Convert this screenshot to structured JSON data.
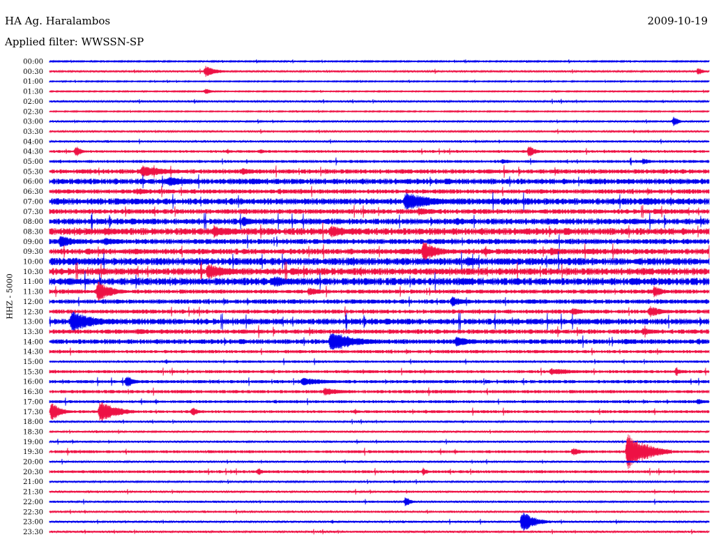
{
  "header": {
    "station": "HA Ag. Haralambos",
    "filter": "Applied filter: WWSSN-SP",
    "date": "2009-10-19"
  },
  "chart_data": {
    "type": "line",
    "title": "HA Ag. Haralambos",
    "subtitle": "Applied filter: WWSSN-SP",
    "date": "2009-10-19",
    "ylabel": "HHZ - 5000",
    "row_interval_minutes": 30,
    "colors": [
      "#0000ee",
      "#ee1144"
    ],
    "rows": [
      "00:00",
      "00:30",
      "01:00",
      "01:30",
      "02:00",
      "02:30",
      "03:00",
      "03:30",
      "04:00",
      "04:30",
      "05:00",
      "05:30",
      "06:00",
      "06:30",
      "07:00",
      "07:30",
      "08:00",
      "08:30",
      "09:00",
      "09:30",
      "10:00",
      "10:30",
      "11:00",
      "11:30",
      "12:00",
      "12:30",
      "13:00",
      "13:30",
      "14:00",
      "14:30",
      "15:00",
      "15:30",
      "16:00",
      "16:30",
      "17:00",
      "17:30",
      "18:00",
      "18:30",
      "19:00",
      "19:30",
      "20:00",
      "20:30",
      "21:00",
      "21:30",
      "22:00",
      "22:30",
      "23:00",
      "23:30"
    ],
    "noise": [
      0.7,
      0.9,
      0.6,
      0.6,
      1.0,
      0.6,
      0.8,
      0.9,
      1.1,
      1.3,
      1.4,
      2.2,
      2.8,
      2.2,
      3.2,
      2.4,
      3.0,
      3.4,
      2.6,
      2.8,
      3.6,
      3.4,
      3.6,
      2.0,
      2.2,
      2.0,
      3.0,
      2.2,
      2.4,
      1.6,
      1.2,
      1.5,
      1.6,
      1.6,
      1.4,
      1.4,
      1.0,
      0.8,
      1.0,
      1.4,
      1.0,
      1.4,
      0.9,
      1.0,
      1.0,
      1.0,
      1.0,
      1.0
    ],
    "events": [
      {
        "row": "00:30",
        "minute": 7.1,
        "amp": 8,
        "dur": 1.2
      },
      {
        "row": "00:30",
        "minute": 29.5,
        "amp": 6,
        "dur": 0.6
      },
      {
        "row": "01:30",
        "minute": 7.1,
        "amp": 5,
        "dur": 0.6
      },
      {
        "row": "03:00",
        "minute": 28.4,
        "amp": 8,
        "dur": 0.5
      },
      {
        "row": "04:30",
        "minute": 1.2,
        "amp": 9,
        "dur": 0.6
      },
      {
        "row": "04:30",
        "minute": 21.8,
        "amp": 9,
        "dur": 0.7
      },
      {
        "row": "04:30",
        "minute": 9.6,
        "amp": 4,
        "dur": 0.6
      },
      {
        "row": "05:00",
        "minute": 20.6,
        "amp": 4,
        "dur": 1.0
      },
      {
        "row": "05:00",
        "minute": 27.0,
        "amp": 5,
        "dur": 0.8
      },
      {
        "row": "05:30",
        "minute": 4.2,
        "amp": 9,
        "dur": 2.8
      },
      {
        "row": "05:30",
        "minute": 8.8,
        "amp": 6,
        "dur": 1.2
      },
      {
        "row": "06:00",
        "minute": 5.4,
        "amp": 7,
        "dur": 3.0
      },
      {
        "row": "06:00",
        "minute": 9.2,
        "amp": 5,
        "dur": 2.0
      },
      {
        "row": "06:30",
        "minute": 4.0,
        "amp": 5,
        "dur": 2.0
      },
      {
        "row": "07:00",
        "minute": 16.2,
        "amp": 14,
        "dur": 2.8
      },
      {
        "row": "07:00",
        "minute": 27.2,
        "amp": 6,
        "dur": 1.5
      },
      {
        "row": "07:30",
        "minute": 16.8,
        "amp": 6,
        "dur": 2.0
      },
      {
        "row": "07:30",
        "minute": 27.5,
        "amp": 5,
        "dur": 1.2
      },
      {
        "row": "08:00",
        "minute": 8.8,
        "amp": 8,
        "dur": 1.2
      },
      {
        "row": "08:00",
        "minute": 18.5,
        "amp": 6,
        "dur": 1.5
      },
      {
        "row": "08:30",
        "minute": 7.5,
        "amp": 8,
        "dur": 2.8
      },
      {
        "row": "08:30",
        "minute": 12.8,
        "amp": 9,
        "dur": 2.5
      },
      {
        "row": "08:30",
        "minute": 2.5,
        "amp": 6,
        "dur": 2.0
      },
      {
        "row": "09:00",
        "minute": 0.5,
        "amp": 9,
        "dur": 1.8
      },
      {
        "row": "09:00",
        "minute": 2.5,
        "amp": 6,
        "dur": 2.2
      },
      {
        "row": "09:30",
        "minute": 17.0,
        "amp": 16,
        "dur": 1.5
      },
      {
        "row": "09:30",
        "minute": 22.8,
        "amp": 6,
        "dur": 1.8
      },
      {
        "row": "10:00",
        "minute": 19.0,
        "amp": 8,
        "dur": 1.5
      },
      {
        "row": "10:00",
        "minute": 22.0,
        "amp": 5,
        "dur": 1.5
      },
      {
        "row": "10:30",
        "minute": 7.2,
        "amp": 12,
        "dur": 2.5
      },
      {
        "row": "10:30",
        "minute": 11.0,
        "amp": 6,
        "dur": 1.5
      },
      {
        "row": "11:00",
        "minute": 10.2,
        "amp": 9,
        "dur": 1.8
      },
      {
        "row": "11:00",
        "minute": 26.5,
        "amp": 6,
        "dur": 1.5
      },
      {
        "row": "11:30",
        "minute": 2.2,
        "amp": 16,
        "dur": 1.4
      },
      {
        "row": "11:30",
        "minute": 11.8,
        "amp": 6,
        "dur": 1.5
      },
      {
        "row": "11:30",
        "minute": 27.5,
        "amp": 9,
        "dur": 1.0
      },
      {
        "row": "12:00",
        "minute": 18.3,
        "amp": 8,
        "dur": 1.2
      },
      {
        "row": "12:30",
        "minute": 23.8,
        "amp": 6,
        "dur": 1.0
      },
      {
        "row": "12:30",
        "minute": 27.3,
        "amp": 9,
        "dur": 1.2
      },
      {
        "row": "13:00",
        "minute": 1.0,
        "amp": 16,
        "dur": 2.5
      },
      {
        "row": "13:30",
        "minute": 4.0,
        "amp": 5,
        "dur": 1.5
      },
      {
        "row": "13:30",
        "minute": 27.0,
        "amp": 6,
        "dur": 1.5
      },
      {
        "row": "14:00",
        "minute": 12.8,
        "amp": 16,
        "dur": 2.5
      },
      {
        "row": "14:00",
        "minute": 18.5,
        "amp": 9,
        "dur": 1.5
      },
      {
        "row": "14:00",
        "minute": 26.2,
        "amp": 5,
        "dur": 1.0
      },
      {
        "row": "15:30",
        "minute": 22.8,
        "amp": 5,
        "dur": 3.0
      },
      {
        "row": "15:30",
        "minute": 28.5,
        "amp": 6,
        "dur": 0.6
      },
      {
        "row": "16:00",
        "minute": 3.5,
        "amp": 10,
        "dur": 0.8
      },
      {
        "row": "16:00",
        "minute": 11.5,
        "amp": 6,
        "dur": 3.0
      },
      {
        "row": "16:30",
        "minute": 12.5,
        "amp": 6,
        "dur": 2.0
      },
      {
        "row": "17:00",
        "minute": 29.5,
        "amp": 5,
        "dur": 0.8
      },
      {
        "row": "17:30",
        "minute": 0.1,
        "amp": 14,
        "dur": 1.0
      },
      {
        "row": "17:30",
        "minute": 2.3,
        "amp": 16,
        "dur": 1.8
      },
      {
        "row": "17:30",
        "minute": 6.5,
        "amp": 8,
        "dur": 0.6
      },
      {
        "row": "19:30",
        "minute": 23.8,
        "amp": 6,
        "dur": 1.0
      },
      {
        "row": "19:30",
        "minute": 26.3,
        "amp": 28,
        "dur": 2.0
      },
      {
        "row": "20:30",
        "minute": 9.5,
        "amp": 6,
        "dur": 0.5
      },
      {
        "row": "20:30",
        "minute": 17.0,
        "amp": 6,
        "dur": 0.5
      },
      {
        "row": "22:00",
        "minute": 16.2,
        "amp": 8,
        "dur": 0.6
      },
      {
        "row": "23:00",
        "minute": 21.5,
        "amp": 16,
        "dur": 1.3
      }
    ]
  }
}
